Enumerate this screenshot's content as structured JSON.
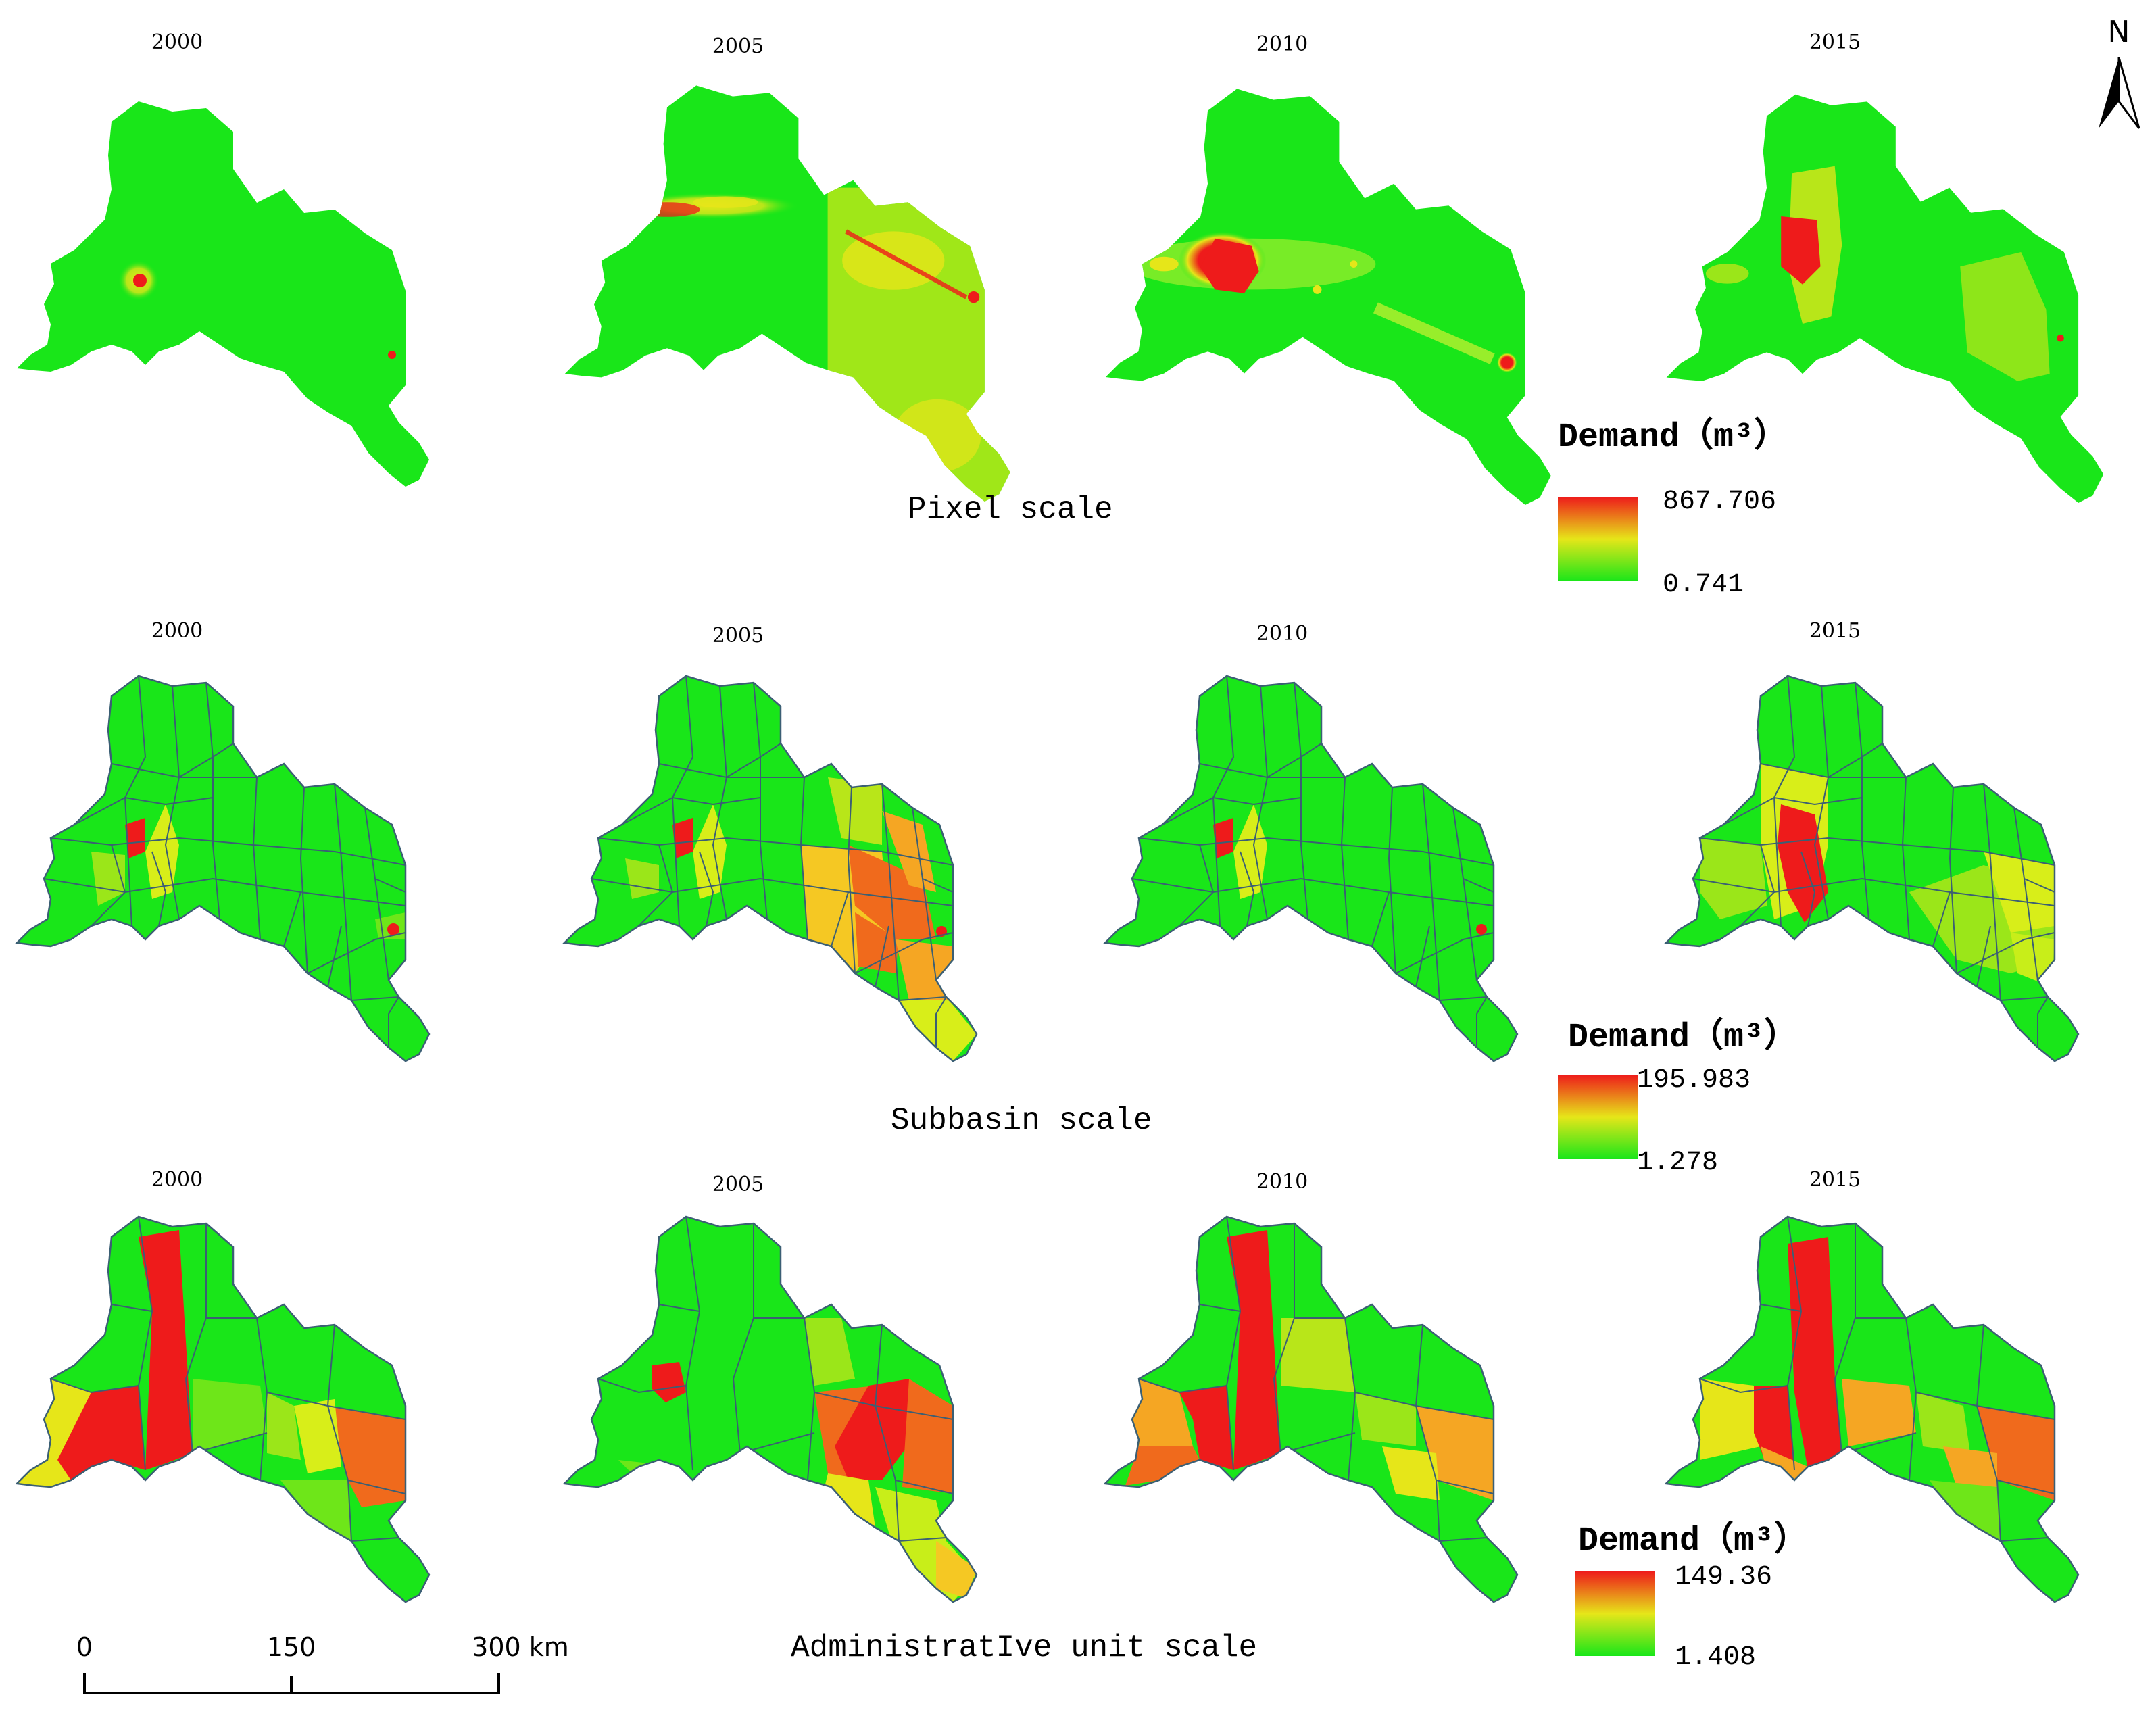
{
  "years": [
    "2000",
    "2005",
    "2010",
    "2015"
  ],
  "north_arrow": {
    "label": "N"
  },
  "colors": {
    "low": "#19e619",
    "mid": "#e6e619",
    "orange": "#f5a623",
    "dark_orange": "#f06a1c",
    "high": "#ee1b1b",
    "boundary": "#3b5f74",
    "background": "#ffffff"
  },
  "rows": [
    {
      "id": "pixel",
      "scale_label": "Pixel scale",
      "legend": {
        "title": "Demand（m³）",
        "max": "867.706",
        "min": "0.741"
      },
      "maps": [
        {
          "year": "2000",
          "pattern": "mostly-low-small-hotspot"
        },
        {
          "year": "2005",
          "pattern": "east-moderate-west-band"
        },
        {
          "year": "2010",
          "pattern": "central-hotspot-corridor"
        },
        {
          "year": "2015",
          "pattern": "central-hotspot-east-patch"
        }
      ]
    },
    {
      "id": "subbasin",
      "scale_label": "Subbasin scale",
      "legend": {
        "title": "Demand（m³）",
        "max": "195.983",
        "min": "1.278"
      },
      "maps": [
        {
          "year": "2000",
          "pattern": "mostly-low-few-units"
        },
        {
          "year": "2005",
          "pattern": "east-high-cluster"
        },
        {
          "year": "2010",
          "pattern": "mostly-low-few-units"
        },
        {
          "year": "2015",
          "pattern": "central-high-east-moderate"
        }
      ]
    },
    {
      "id": "admin",
      "scale_label": "AdministratIve unit scale",
      "legend": {
        "title": "Demand（m³）",
        "max": "149.36",
        "min": "1.408"
      },
      "maps": [
        {
          "year": "2000",
          "pattern": "west-high-east-orange"
        },
        {
          "year": "2005",
          "pattern": "east-high-cluster"
        },
        {
          "year": "2010",
          "pattern": "west-high-east-orange"
        },
        {
          "year": "2015",
          "pattern": "central-high-east-orange"
        }
      ]
    }
  ],
  "scale_bar": {
    "ticks": [
      "0",
      "150",
      "300 km"
    ]
  }
}
